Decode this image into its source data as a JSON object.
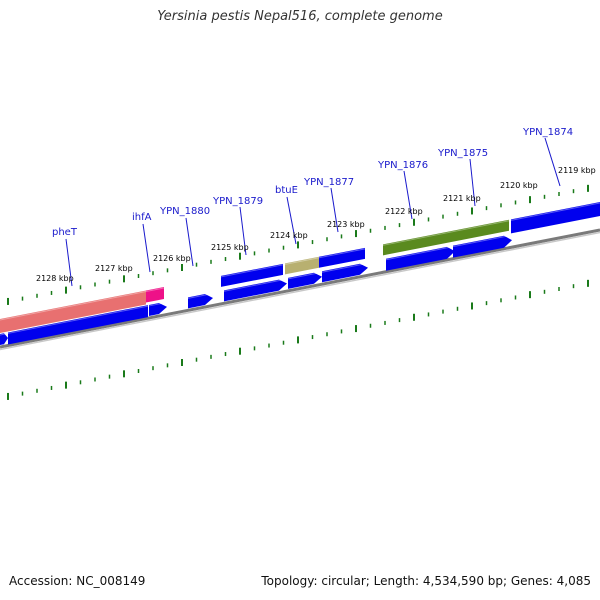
{
  "title": "Yersinia pestis Nepal516, complete genome",
  "footer": {
    "accession": "Accession: NC_008149",
    "summary": "Topology: circular; Length: 4,534,590 bp; Genes: 4,085"
  },
  "colors": {
    "cds": "#0000ee",
    "trna": "#e87070",
    "rrna_like": "#ee1188",
    "feature_olive": "#5a8a1e",
    "feature_khaki": "#b8b070",
    "tick": "#1a7a1a",
    "backbone": "#888888",
    "gene_label": "#1a1acc"
  },
  "map": {
    "kbp_ticks": [
      "2119 kbp",
      "2120 kbp",
      "2121 kbp",
      "2122 kbp",
      "2123 kbp",
      "2124 kbp",
      "2125 kbp",
      "2126 kbp",
      "2127 kbp",
      "2128 kbp"
    ],
    "gene_labels": [
      "YPN_1874",
      "YPN_1875",
      "YPN_1876",
      "YPN_1877",
      "btuE",
      "YPN_1879",
      "YPN_1880",
      "ihfA",
      "pheT"
    ]
  }
}
